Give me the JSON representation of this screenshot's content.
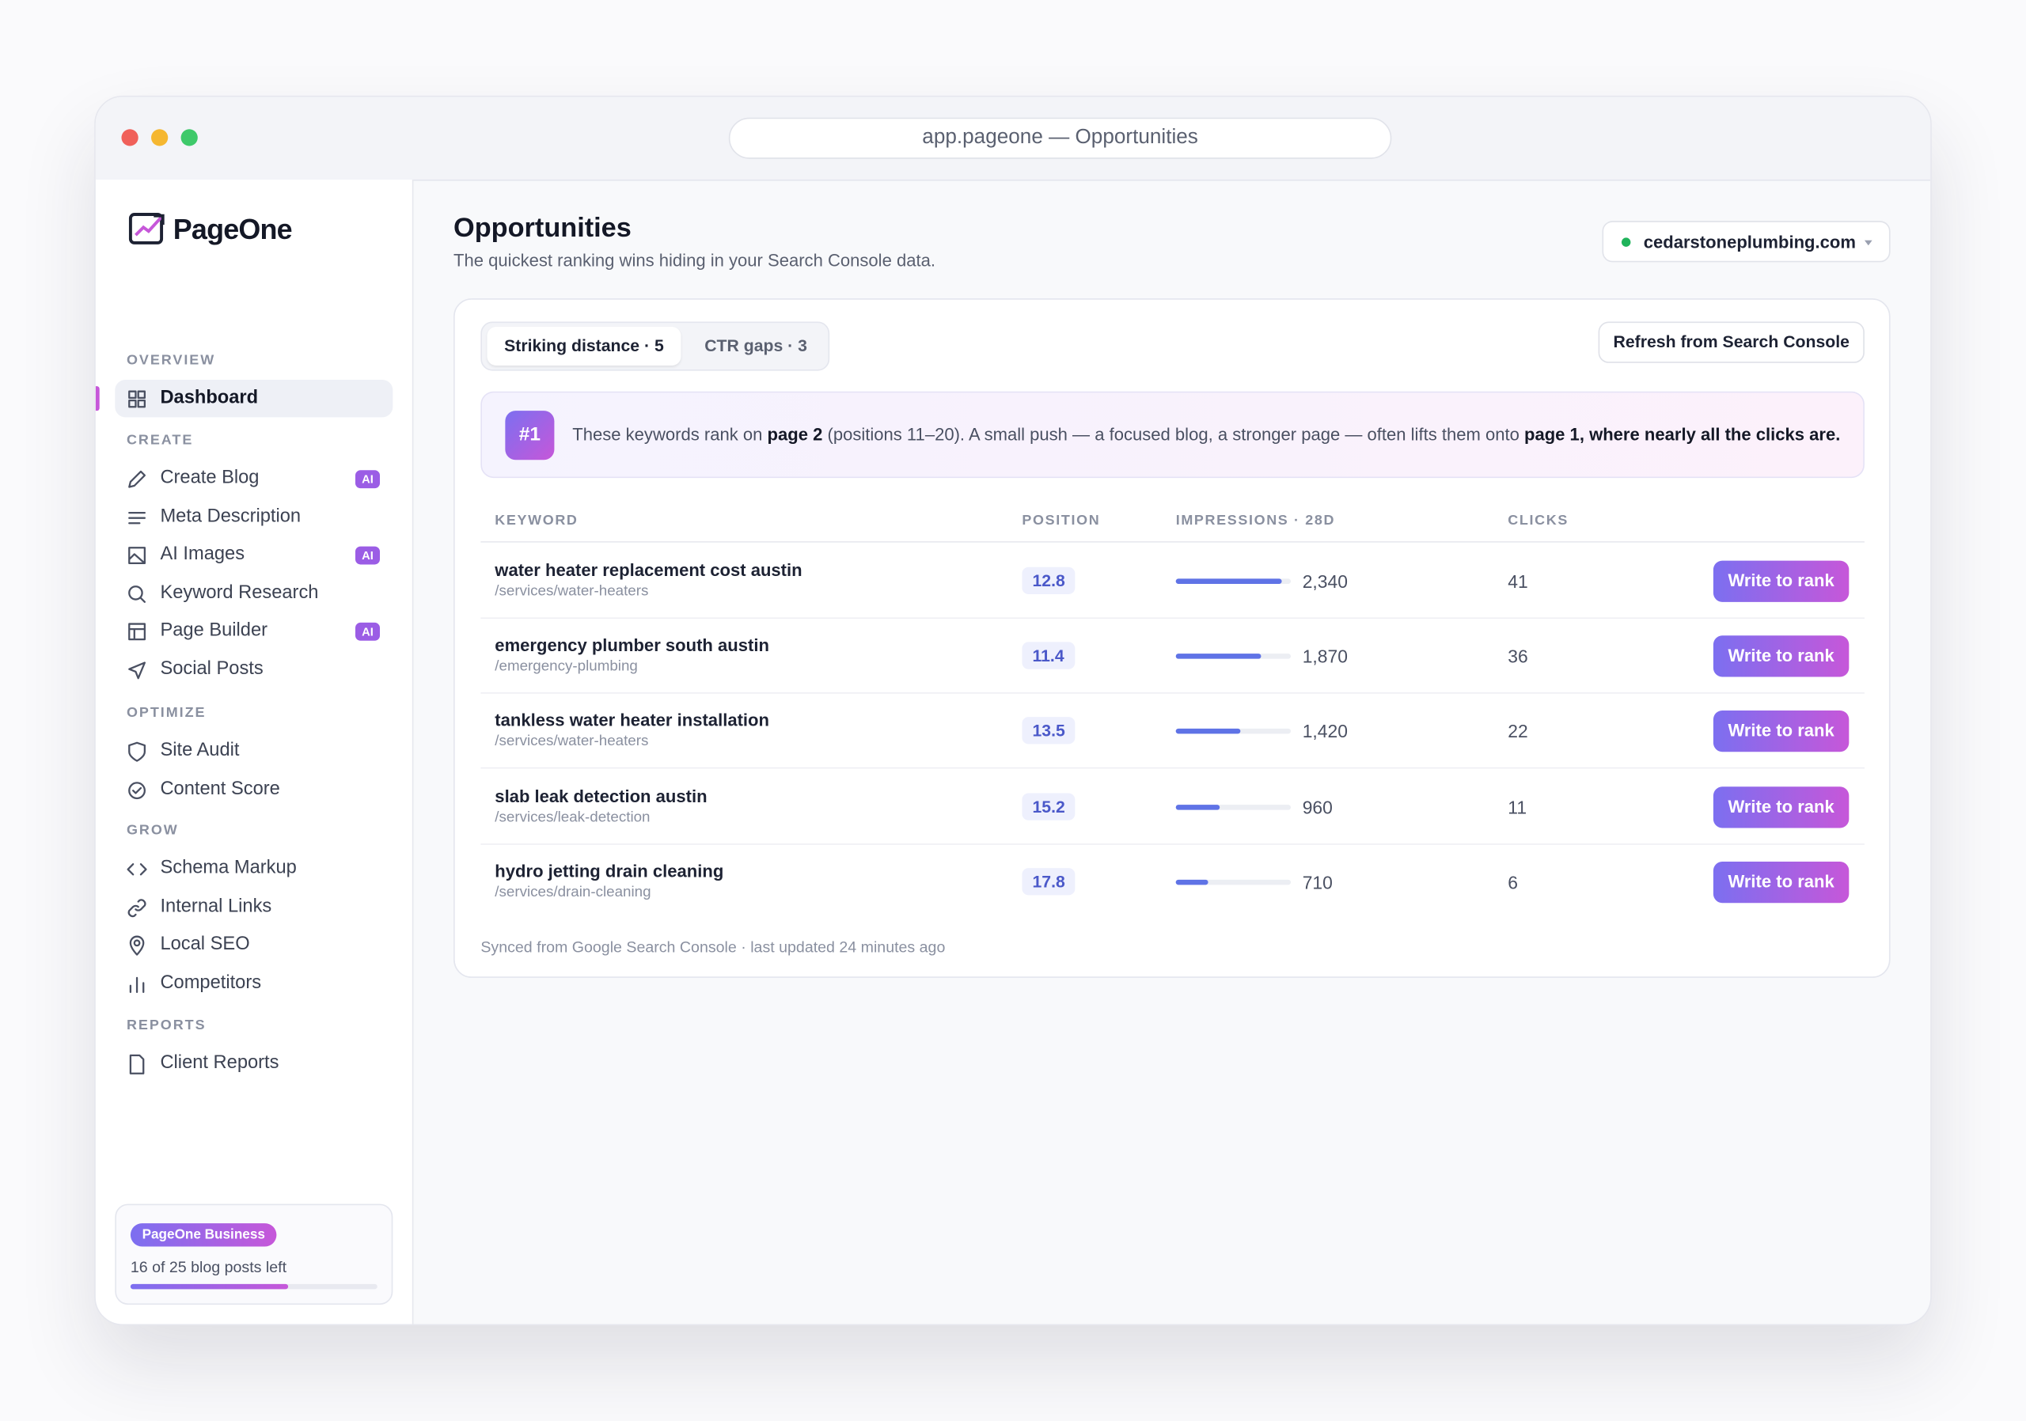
{
  "window": {
    "url": "app.pageone — Opportunities"
  },
  "sidebar": {
    "brand": "PageOne",
    "nav": [
      {
        "section": "OVERVIEW",
        "items": [
          {
            "label": "Dashboard"
          }
        ]
      },
      {
        "section": "CREATE",
        "items": [
          {
            "label": "Create Blog",
            "badge": "AI"
          },
          {
            "label": "Meta Description"
          },
          {
            "label": "AI Images",
            "badge": "AI"
          },
          {
            "label": "Keyword Research"
          },
          {
            "label": "Page Builder",
            "badge": "AI"
          },
          {
            "label": "Social Posts"
          }
        ]
      },
      {
        "section": "OPTIMIZE",
        "items": [
          {
            "label": "Site Audit"
          },
          {
            "label": "Content Score"
          }
        ]
      },
      {
        "section": "GROW",
        "items": [
          {
            "label": "Schema Markup"
          },
          {
            "label": "Internal Links"
          },
          {
            "label": "Local SEO"
          },
          {
            "label": "Competitors"
          }
        ]
      },
      {
        "section": "REPORTS",
        "items": [
          {
            "label": "Client Reports"
          }
        ]
      }
    ],
    "plan": {
      "badge": "PageOne Business",
      "usage": "16 of 25 blog posts left"
    }
  },
  "header": {
    "title": "Opportunities",
    "subtitle": "The quickest ranking wins hiding in your Search Console data.",
    "site": "cedarstoneplumbing.com"
  },
  "tabs": [
    "Striking distance · 5",
    "CTR gaps · 3"
  ],
  "refresh": "Refresh from Search Console",
  "banner": {
    "badge": "#1",
    "parts": [
      "These keywords rank on ",
      "page 2",
      " (positions 11–20). A small push — a focused blog, a stronger page — often lifts them onto ",
      "page 1, where nearly all the clicks are."
    ]
  },
  "table": {
    "columns": [
      "KEYWORD",
      "POSITION",
      "IMPRESSIONS · 28D",
      "CLICKS"
    ],
    "rows": [
      {
        "keyword": "water heater replacement cost austin",
        "path": "/services/water-heaters",
        "position": "12.8",
        "impressions": {
          "value": 2340,
          "label": "2,340"
        },
        "clicks": "41",
        "action": "Write to rank"
      },
      {
        "keyword": "emergency plumber south austin",
        "path": "/emergency-plumbing",
        "position": "11.4",
        "impressions": {
          "value": 1870,
          "label": "1,870"
        },
        "clicks": "36",
        "action": "Write to rank"
      },
      {
        "keyword": "tankless water heater installation",
        "path": "/services/water-heaters",
        "position": "13.5",
        "impressions": {
          "value": 1420,
          "label": "1,420"
        },
        "clicks": "22",
        "action": "Write to rank"
      },
      {
        "keyword": "slab leak detection austin",
        "path": "/services/leak-detection",
        "position": "15.2",
        "impressions": {
          "value": 960,
          "label": "960"
        },
        "clicks": "11",
        "action": "Write to rank"
      },
      {
        "keyword": "hydro jetting drain cleaning",
        "path": "/services/drain-cleaning",
        "position": "17.8",
        "impressions": {
          "value": 710,
          "label": "710"
        },
        "clicks": "6",
        "action": "Write to rank"
      }
    ]
  },
  "footer": "Synced from Google Search Console · last updated 24 minutes ago"
}
